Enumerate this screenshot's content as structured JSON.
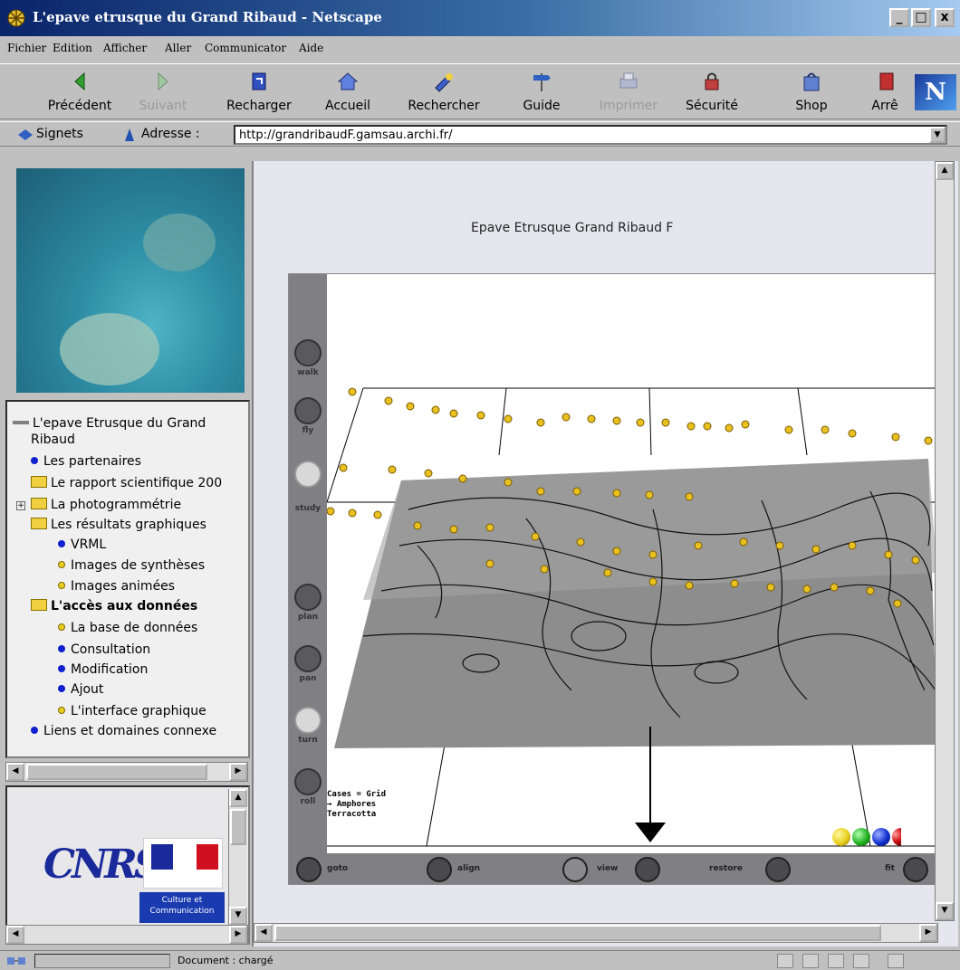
{
  "window": {
    "title": "L'epave etrusque du Grand Ribaud - Netscape",
    "minimize": "_",
    "maximize": "□",
    "close": "x"
  },
  "menu": [
    "Fichier",
    "Edition",
    "Afficher",
    "Aller",
    "Communicator",
    "Aide"
  ],
  "toolbar": {
    "back": "Précédent",
    "forward": "Suivant",
    "reload": "Recharger",
    "home": "Accueil",
    "search": "Rechercher",
    "guide": "Guide",
    "print": "Imprimer",
    "security": "Sécurité",
    "shop": "Shop",
    "stop": "Arrê",
    "logo": "N"
  },
  "location": {
    "bookmarks": "Signets",
    "address_label": "Adresse :",
    "url": "http://grandribaudF.gamsau.archi.fr/"
  },
  "tree": {
    "root": "L'epave Etrusque du Grand",
    "root_cont": "Ribaud",
    "items": [
      "Les partenaires",
      "Le rapport scientifique 200",
      "La photogrammétrie",
      "Les résultats graphiques",
      "VRML",
      "Images de synthèses",
      "Images animées",
      "L'accès aux données",
      "La base de données",
      "Consultation",
      "Modification",
      "Ajout",
      "L'interface graphique",
      "Liens et domaines connexe"
    ]
  },
  "logos": {
    "cnrs": "CNRS",
    "culture": "Culture et Communication"
  },
  "content": {
    "title": "Epave Etrusque Grand Ribaud F"
  },
  "applet": {
    "vtools": [
      "walk",
      "fly",
      "study",
      "plan",
      "pan",
      "turn",
      "roll"
    ],
    "htools": [
      "goto",
      "align",
      "view",
      "restore",
      "fit"
    ],
    "legend": "Cases = Grid\n→ Amphores\nTerracotta",
    "colors": [
      "#e8d020",
      "#20b020",
      "#1030d0",
      "#d01010"
    ]
  },
  "status": {
    "text": "Document : chargé"
  }
}
